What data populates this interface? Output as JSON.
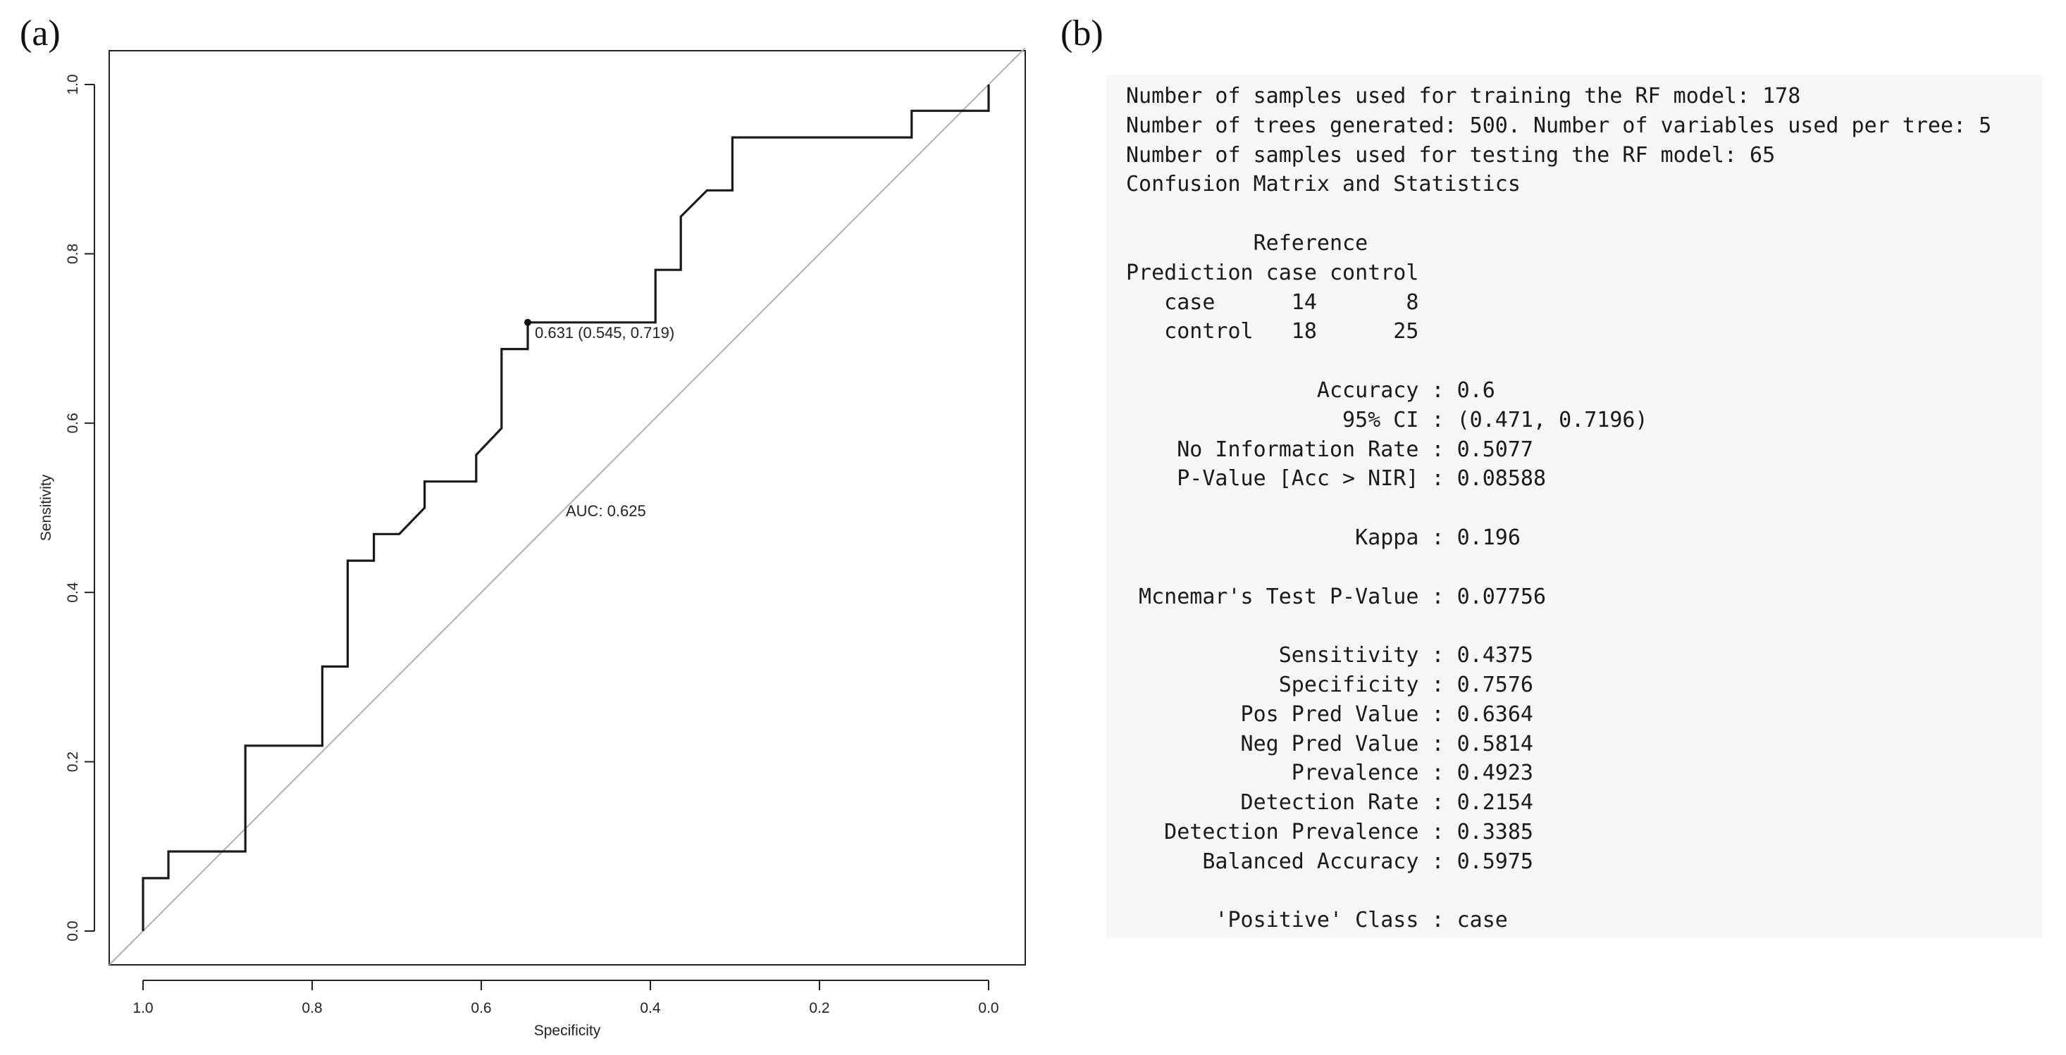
{
  "panel_labels": {
    "a": "(a)",
    "b": "(b)"
  },
  "chart_data": {
    "type": "line",
    "title": "",
    "xlabel": "Specificity",
    "ylabel": "Sensitivity",
    "xlim": [
      1.0,
      0.0
    ],
    "ylim": [
      0.0,
      1.0
    ],
    "x_reversed": true,
    "xticks": [
      1.0,
      0.8,
      0.6,
      0.4,
      0.2,
      0.0
    ],
    "xtick_labels": [
      "1.0",
      "0.8",
      "0.6",
      "0.4",
      "0.2",
      "0.0"
    ],
    "yticks": [
      0.0,
      0.2,
      0.4,
      0.6,
      0.8,
      1.0
    ],
    "ytick_labels": [
      "0.0",
      "0.2",
      "0.4",
      "0.6",
      "0.8",
      "1.0"
    ],
    "grid": false,
    "series": [
      {
        "style": "step",
        "color": "#1a1a1a",
        "points": [
          [
            1.0,
            0.0
          ],
          [
            1.0,
            0.0625
          ],
          [
            0.97,
            0.0625
          ],
          [
            0.97,
            0.094
          ],
          [
            0.879,
            0.094
          ],
          [
            0.879,
            0.219
          ],
          [
            0.788,
            0.219
          ],
          [
            0.788,
            0.3125
          ],
          [
            0.758,
            0.3125
          ],
          [
            0.758,
            0.4375
          ],
          [
            0.727,
            0.4375
          ],
          [
            0.727,
            0.469
          ],
          [
            0.697,
            0.469
          ],
          [
            0.667,
            0.5
          ],
          [
            0.667,
            0.531
          ],
          [
            0.606,
            0.531
          ],
          [
            0.606,
            0.5625
          ],
          [
            0.576,
            0.594
          ],
          [
            0.576,
            0.6875
          ],
          [
            0.545,
            0.6875
          ],
          [
            0.545,
            0.719
          ],
          [
            0.394,
            0.719
          ],
          [
            0.394,
            0.781
          ],
          [
            0.364,
            0.781
          ],
          [
            0.364,
            0.844
          ],
          [
            0.333,
            0.875
          ],
          [
            0.303,
            0.875
          ],
          [
            0.303,
            0.9375
          ],
          [
            0.091,
            0.9375
          ],
          [
            0.091,
            0.969
          ],
          [
            0.0,
            0.969
          ],
          [
            0.0,
            1.0
          ]
        ]
      },
      {
        "style": "reference",
        "color": "#b0b0b0",
        "points": [
          [
            1.0,
            0.0
          ],
          [
            0.0,
            1.0
          ]
        ]
      }
    ],
    "annotations": [
      {
        "text": "0.631 (0.545, 0.719)",
        "x": 0.545,
        "y": 0.719,
        "marker": "point"
      },
      {
        "text": "AUC: 0.625",
        "x": 0.5,
        "y": 0.49
      }
    ]
  },
  "console": {
    "lines": [
      "Number of samples used for training the RF model: 178",
      "Number of trees generated: 500. Number of variables used per tree: 5",
      "Number of samples used for testing the RF model: 65",
      "Confusion Matrix and Statistics",
      "",
      "          Reference",
      "Prediction case control",
      "   case      14       8",
      "   control   18      25",
      "",
      "               Accuracy : 0.6",
      "                 95% CI : (0.471, 0.7196)",
      "    No Information Rate : 0.5077",
      "    P-Value [Acc > NIR] : 0.08588",
      "",
      "                  Kappa : 0.196",
      "",
      " Mcnemar's Test P-Value : 0.07756",
      "",
      "            Sensitivity : 0.4375",
      "            Specificity : 0.7576",
      "         Pos Pred Value : 0.6364",
      "         Neg Pred Value : 0.5814",
      "             Prevalence : 0.4923",
      "         Detection Rate : 0.2154",
      "   Detection Prevalence : 0.3385",
      "      Balanced Accuracy : 0.5975",
      "",
      "       'Positive' Class : case"
    ]
  }
}
